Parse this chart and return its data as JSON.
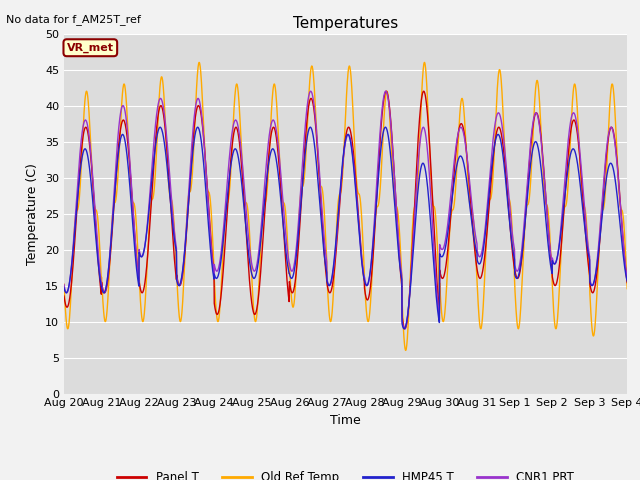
{
  "title": "Temperatures",
  "ylabel": "Temperature (C)",
  "xlabel": "Time",
  "annotation": "No data for f_AM25T_ref",
  "legend_label": "VR_met",
  "ylim": [
    0,
    50
  ],
  "yticks": [
    0,
    5,
    10,
    15,
    20,
    25,
    30,
    35,
    40,
    45,
    50
  ],
  "n_days": 15,
  "colors": {
    "panel_t": "#cc0000",
    "old_ref": "#ffaa00",
    "hmp45": "#2222cc",
    "cnr1": "#9933cc"
  },
  "legend_entries": [
    "Panel T",
    "Old Ref Temp",
    "HMP45 T",
    "CNR1 PRT"
  ],
  "legend_colors": [
    "#cc0000",
    "#ffaa00",
    "#2222cc",
    "#9933cc"
  ],
  "bg_color": "#dcdcdc",
  "grid_color": "#ffffff",
  "title_fontsize": 11,
  "label_fontsize": 9,
  "tick_fontsize": 8,
  "figwidth": 6.4,
  "figheight": 4.8,
  "dpi": 100
}
